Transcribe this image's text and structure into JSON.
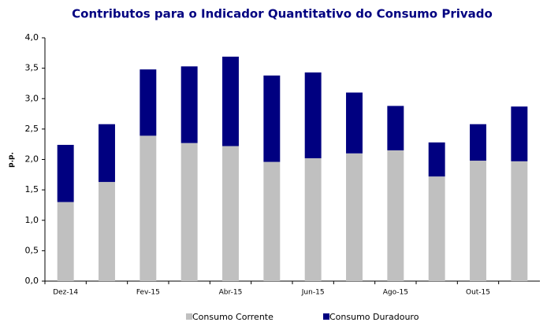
{
  "chart_data": {
    "type": "stacked_bar",
    "title": "Contributos para o Indicador Quantitativo do Consumo Privado",
    "y_label": "p.p.",
    "categories": [
      "Dez-14",
      null,
      "Fev-15",
      null,
      "Abr-15",
      null,
      "Jun-15",
      null,
      "Ago-15",
      null,
      "Out-15",
      null
    ],
    "series": [
      {
        "name": "Consumo Corrente",
        "color": "#c0c0c0",
        "values": [
          1.3,
          1.63,
          2.39,
          2.27,
          2.22,
          1.96,
          2.02,
          2.1,
          2.15,
          1.72,
          1.98,
          1.97
        ]
      },
      {
        "name": "Consumo Duradouro",
        "color": "#000080",
        "values": [
          0.94,
          0.95,
          1.09,
          1.26,
          1.47,
          1.42,
          1.41,
          1.0,
          0.73,
          0.56,
          0.6,
          0.9
        ]
      }
    ],
    "ylim": [
      0,
      4
    ],
    "yticks": [
      {
        "value": 0,
        "label": "0,0"
      },
      {
        "value": 0.5,
        "label": "0,5"
      },
      {
        "value": 1,
        "label": "1,0"
      },
      {
        "value": 1.5,
        "label": "1,5"
      },
      {
        "value": 2,
        "label": "2,0"
      },
      {
        "value": 2.5,
        "label": "2,5"
      },
      {
        "value": 3,
        "label": "3,0"
      },
      {
        "value": 3.5,
        "label": "3,5"
      },
      {
        "value": 4,
        "label": "4,0"
      }
    ],
    "grid": false,
    "legend": "bottom"
  }
}
